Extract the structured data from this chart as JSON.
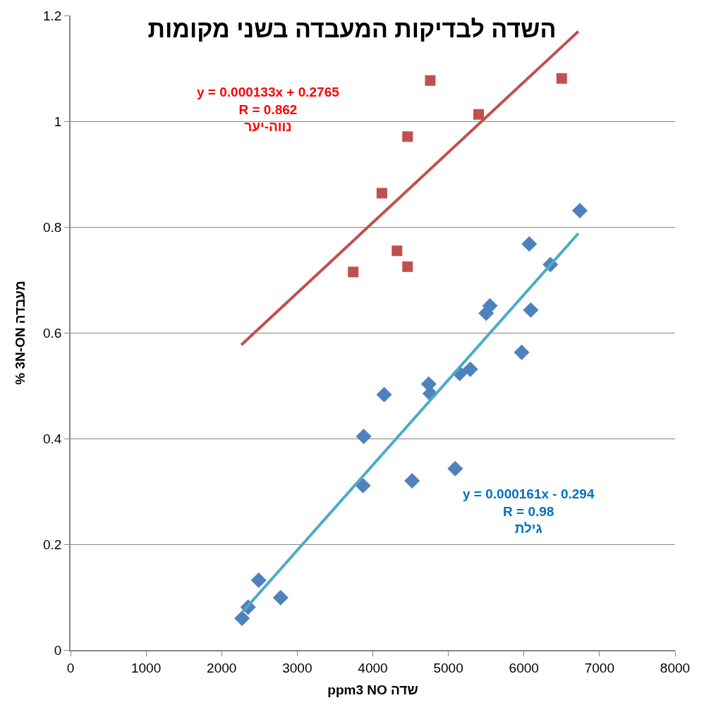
{
  "chart_data": {
    "type": "scatter",
    "title": "השדה לבדיקות המעבדה בשני מקומות",
    "xlabel": "ppm3 NO שדה",
    "ylabel": "% 3N-ON מעבדה",
    "xlim": [
      0,
      8000
    ],
    "xticks": [
      0,
      1000,
      2000,
      3000,
      4000,
      5000,
      6000,
      7000,
      8000
    ],
    "ylim": [
      0,
      1.2
    ],
    "yticks": [
      0,
      0.2,
      0.4,
      0.6,
      0.8,
      1,
      1.2
    ],
    "grid": "y",
    "series": [
      {
        "marker": "square",
        "color": "#c0504d",
        "x": [
          3740,
          4120,
          4320,
          4460,
          4460,
          4760,
          5400,
          6500
        ],
        "values": [
          0.715,
          0.864,
          0.755,
          0.971,
          0.725,
          1.077,
          1.013,
          1.081
        ]
      },
      {
        "marker": "diamond",
        "color": "#4f81bd",
        "x": [
          2270,
          2350,
          2490,
          2780,
          3870,
          3880,
          4150,
          4520,
          4740,
          4760,
          5090,
          5150,
          5290,
          5500,
          5550,
          5970,
          6070,
          6090,
          6350,
          6740
        ],
        "values": [
          0.06,
          0.081,
          0.132,
          0.099,
          0.311,
          0.404,
          0.483,
          0.32,
          0.503,
          0.485,
          0.343,
          0.523,
          0.531,
          0.637,
          0.651,
          0.563,
          0.768,
          0.643,
          0.729,
          0.831
        ]
      },
      {
        "type": "line",
        "marker": "none",
        "line_style": "solid",
        "color": "#c0504d",
        "x": [
          2260,
          6720
        ],
        "values": [
          0.577,
          1.17
        ]
      },
      {
        "type": "line",
        "marker": "none",
        "line_style": "solid",
        "color": "#4bacc6",
        "x": [
          2270,
          6720
        ],
        "values": [
          0.071,
          0.788
        ]
      }
    ],
    "annotations": [
      "y = 0.000133x + 0.2765\nR = 0.862\nנווה-יער",
      "y = 0.000161x - 0.294\nR = 0.98\nגילת"
    ]
  }
}
